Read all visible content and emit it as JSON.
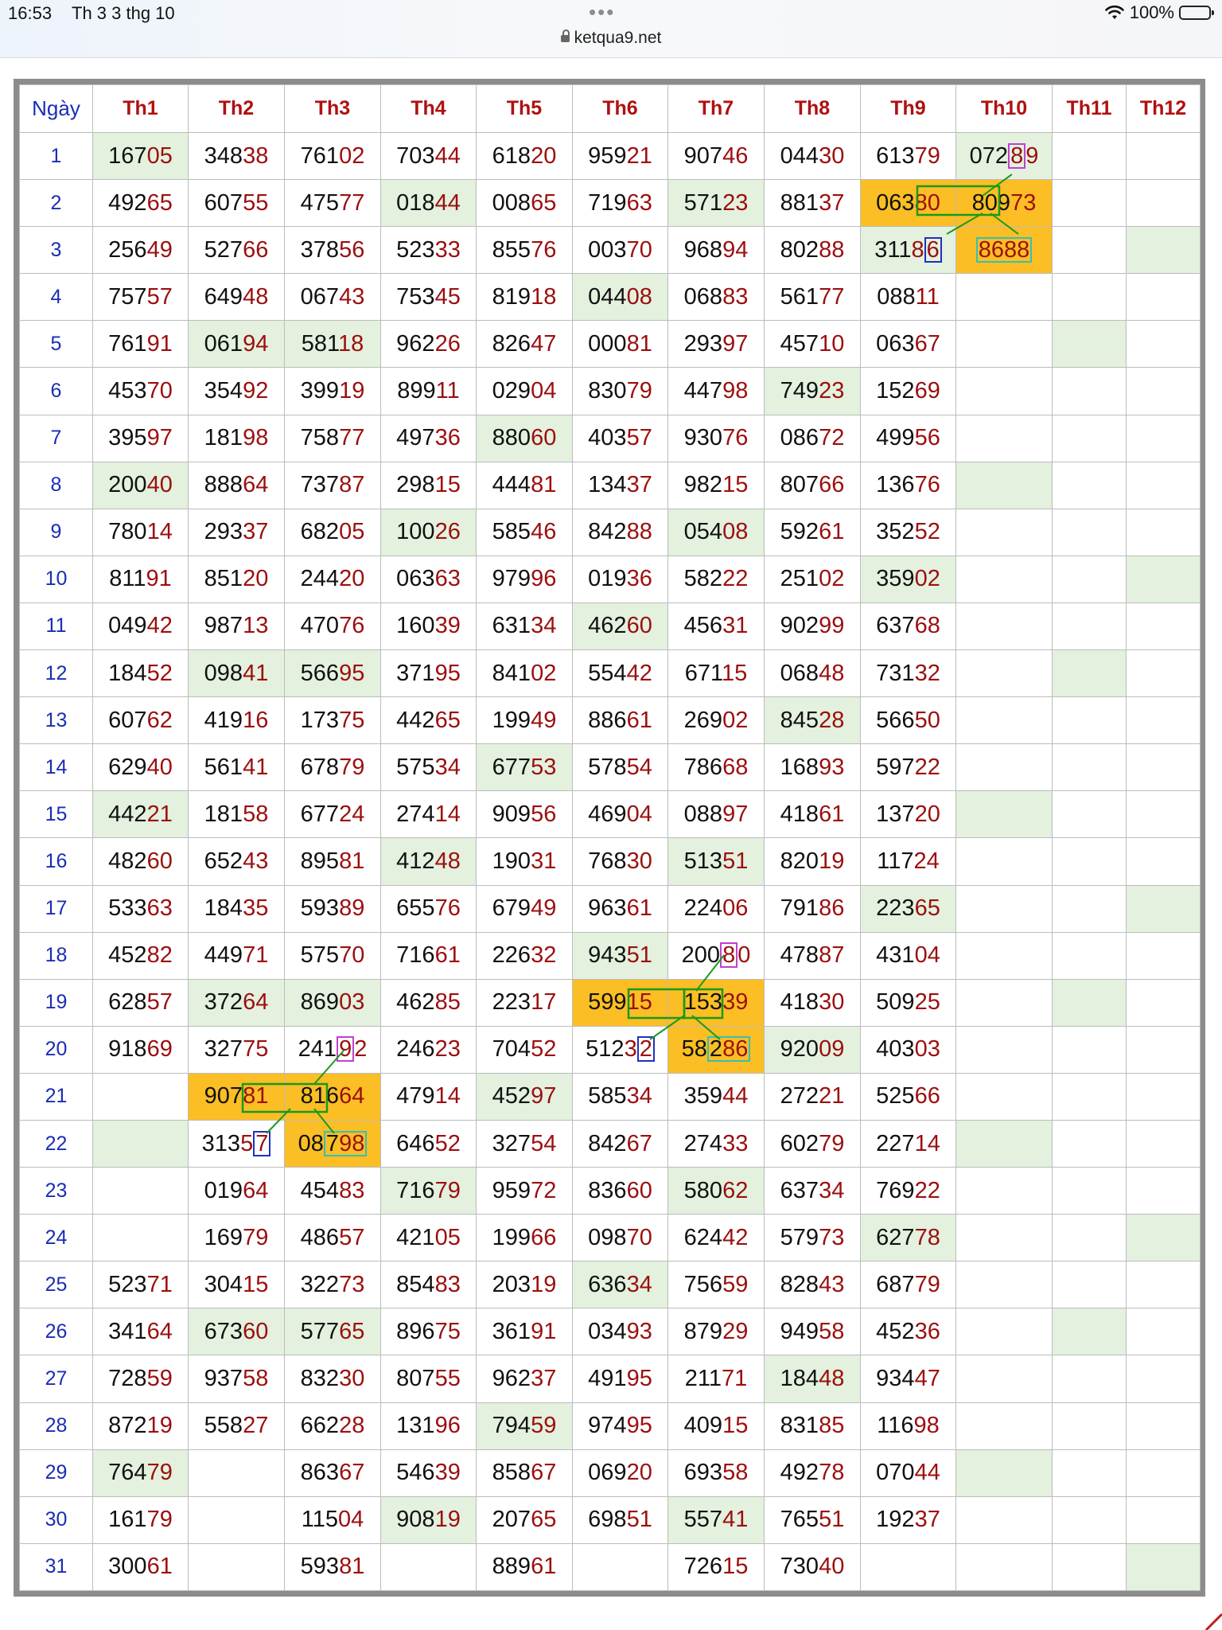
{
  "statusbar": {
    "time": "16:53",
    "date": "Th 3 3 thg 10",
    "battery": "100%",
    "icons": [
      "wifi-icon",
      "battery-icon",
      "more-dots-icon"
    ]
  },
  "url": {
    "domain": "ketqua9.net",
    "icon": "lock-icon"
  },
  "colors": {
    "highlight_green": "#e3f1de",
    "highlight_orange": "#fbbe24",
    "day_blue": "#1a2db4",
    "month_red": "#b01010",
    "tail_red": "#9c0f0f",
    "line_green": "#1a9a1a"
  },
  "table": {
    "day_header": "Ngày",
    "months": [
      "Th1",
      "Th2",
      "Th3",
      "Th4",
      "Th5",
      "Th6",
      "Th7",
      "Th8",
      "Th9",
      "Th10",
      "Th11",
      "Th12"
    ],
    "rows": [
      {
        "day": "1",
        "cells": [
          "16705",
          "34838",
          "76102",
          "70344",
          "61820",
          "95921",
          "90746",
          "04430",
          "61379",
          "07289",
          "",
          ""
        ]
      },
      {
        "day": "2",
        "cells": [
          "49265",
          "60755",
          "47577",
          "01844",
          "00865",
          "71963",
          "57123",
          "88137",
          "06380",
          "80973",
          "",
          ""
        ]
      },
      {
        "day": "3",
        "cells": [
          "25649",
          "52766",
          "37856",
          "52333",
          "85576",
          "00370",
          "96894",
          "80288",
          "31186",
          "8688",
          "",
          ""
        ]
      },
      {
        "day": "4",
        "cells": [
          "75757",
          "64948",
          "06743",
          "75345",
          "81918",
          "04408",
          "06883",
          "56177",
          "08811",
          "",
          "",
          ""
        ]
      },
      {
        "day": "5",
        "cells": [
          "76191",
          "06194",
          "58118",
          "96226",
          "82647",
          "00081",
          "29397",
          "45710",
          "06367",
          "",
          "",
          ""
        ]
      },
      {
        "day": "6",
        "cells": [
          "45370",
          "35492",
          "39919",
          "89911",
          "02904",
          "83079",
          "44798",
          "74923",
          "15269",
          "",
          "",
          ""
        ]
      },
      {
        "day": "7",
        "cells": [
          "39597",
          "18198",
          "75877",
          "49736",
          "88060",
          "40357",
          "93076",
          "08672",
          "49956",
          "",
          "",
          ""
        ]
      },
      {
        "day": "8",
        "cells": [
          "20040",
          "88864",
          "73787",
          "29815",
          "44481",
          "13437",
          "98215",
          "80766",
          "13676",
          "",
          "",
          ""
        ]
      },
      {
        "day": "9",
        "cells": [
          "78014",
          "29337",
          "68205",
          "10026",
          "58546",
          "84288",
          "05408",
          "59261",
          "35252",
          "",
          "",
          ""
        ]
      },
      {
        "day": "10",
        "cells": [
          "81191",
          "85120",
          "24420",
          "06363",
          "97996",
          "01936",
          "58222",
          "25102",
          "35902",
          "",
          "",
          ""
        ]
      },
      {
        "day": "11",
        "cells": [
          "04942",
          "98713",
          "47076",
          "16039",
          "63134",
          "46260",
          "45631",
          "90299",
          "63768",
          "",
          "",
          ""
        ]
      },
      {
        "day": "12",
        "cells": [
          "18452",
          "09841",
          "56695",
          "37195",
          "84102",
          "55442",
          "67115",
          "06848",
          "73132",
          "",
          "",
          ""
        ]
      },
      {
        "day": "13",
        "cells": [
          "60762",
          "41916",
          "17375",
          "44265",
          "19949",
          "88661",
          "26902",
          "84528",
          "56650",
          "",
          "",
          ""
        ]
      },
      {
        "day": "14",
        "cells": [
          "62940",
          "56141",
          "67879",
          "57534",
          "67753",
          "57854",
          "78668",
          "16893",
          "59722",
          "",
          "",
          ""
        ]
      },
      {
        "day": "15",
        "cells": [
          "44221",
          "18158",
          "67724",
          "27414",
          "90956",
          "46904",
          "08897",
          "41861",
          "13720",
          "",
          "",
          ""
        ]
      },
      {
        "day": "16",
        "cells": [
          "48260",
          "65243",
          "89581",
          "41248",
          "19031",
          "76830",
          "51351",
          "82019",
          "11724",
          "",
          "",
          ""
        ]
      },
      {
        "day": "17",
        "cells": [
          "53363",
          "18435",
          "59389",
          "65576",
          "67949",
          "96361",
          "22406",
          "79186",
          "22365",
          "",
          "",
          ""
        ]
      },
      {
        "day": "18",
        "cells": [
          "45282",
          "44971",
          "57570",
          "71661",
          "22632",
          "94351",
          "20080",
          "47887",
          "43104",
          "",
          "",
          ""
        ]
      },
      {
        "day": "19",
        "cells": [
          "62857",
          "37264",
          "86903",
          "46285",
          "22317",
          "59915",
          "15339",
          "41830",
          "50925",
          "",
          "",
          ""
        ]
      },
      {
        "day": "20",
        "cells": [
          "91869",
          "32775",
          "24192",
          "24623",
          "70452",
          "51232",
          "58286",
          "92009",
          "40303",
          "",
          "",
          ""
        ]
      },
      {
        "day": "21",
        "cells": [
          "",
          "90781",
          "81664",
          "47914",
          "45297",
          "58534",
          "35944",
          "27221",
          "52566",
          "",
          "",
          ""
        ]
      },
      {
        "day": "22",
        "cells": [
          "",
          "31357",
          "08798",
          "64652",
          "32754",
          "84267",
          "27433",
          "60279",
          "22714",
          "",
          "",
          ""
        ]
      },
      {
        "day": "23",
        "cells": [
          "",
          "01964",
          "45483",
          "71679",
          "95972",
          "83660",
          "58062",
          "63734",
          "76922",
          "",
          "",
          ""
        ]
      },
      {
        "day": "24",
        "cells": [
          "",
          "16979",
          "48657",
          "42105",
          "19966",
          "09870",
          "62442",
          "57973",
          "62778",
          "",
          "",
          ""
        ]
      },
      {
        "day": "25",
        "cells": [
          "52371",
          "30415",
          "32273",
          "85483",
          "20319",
          "63634",
          "75659",
          "82843",
          "68779",
          "",
          "",
          ""
        ]
      },
      {
        "day": "26",
        "cells": [
          "34164",
          "67360",
          "57765",
          "89675",
          "36191",
          "03493",
          "87929",
          "94958",
          "45236",
          "",
          "",
          ""
        ]
      },
      {
        "day": "27",
        "cells": [
          "72859",
          "93758",
          "83230",
          "80755",
          "96237",
          "49195",
          "21171",
          "18448",
          "93447",
          "",
          "",
          ""
        ]
      },
      {
        "day": "28",
        "cells": [
          "87219",
          "55827",
          "66228",
          "13196",
          "79459",
          "97495",
          "40915",
          "83185",
          "11698",
          "",
          "",
          ""
        ]
      },
      {
        "day": "29",
        "cells": [
          "76479",
          "",
          "86367",
          "54639",
          "85867",
          "06920",
          "69358",
          "49278",
          "07044",
          "",
          "",
          ""
        ]
      },
      {
        "day": "30",
        "cells": [
          "16179",
          "",
          "11504",
          "90819",
          "20765",
          "69851",
          "55741",
          "76551",
          "19237",
          "",
          "",
          ""
        ]
      },
      {
        "day": "31",
        "cells": [
          "30061",
          "",
          "59381",
          "",
          "88961",
          "",
          "72615",
          "73040",
          "",
          "",
          "",
          ""
        ]
      }
    ]
  }
}
